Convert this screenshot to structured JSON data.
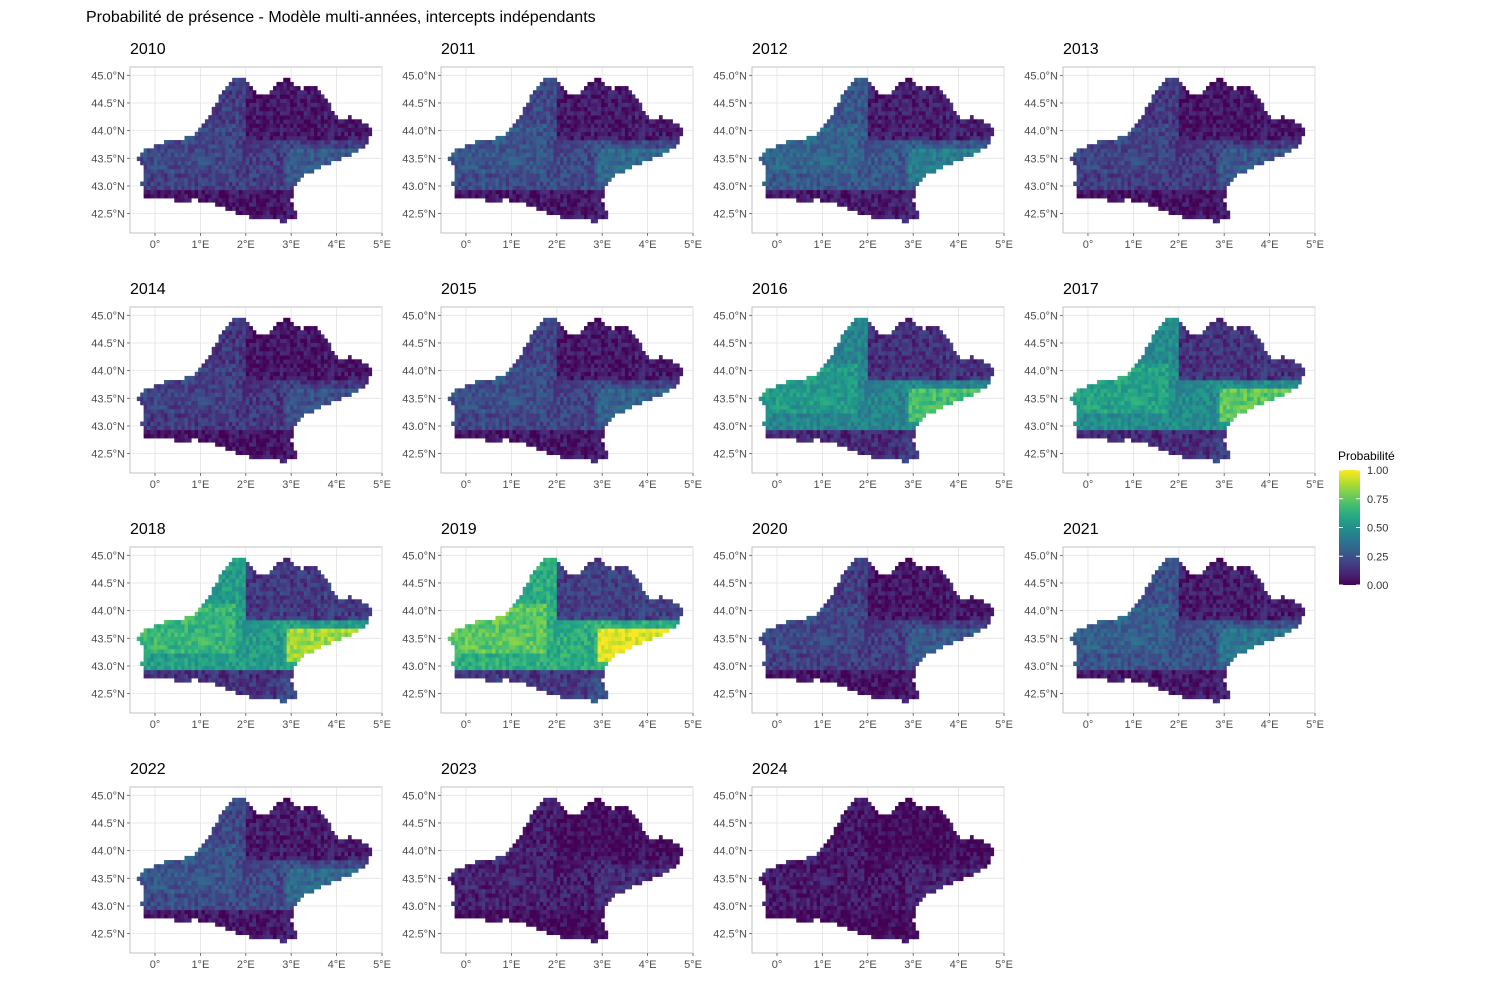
{
  "title": "Probabilité de présence - Modèle multi-années, intercepts indépendants",
  "chart_data": {
    "type": "heatmap",
    "title": "Probabilité de présence - Modèle multi-années, intercepts indépendants",
    "panels": [
      "2010",
      "2011",
      "2012",
      "2013",
      "2014",
      "2015",
      "2016",
      "2017",
      "2018",
      "2019",
      "2020",
      "2021",
      "2022",
      "2023",
      "2024"
    ],
    "panel_mean_probability": [
      0.18,
      0.22,
      0.27,
      0.17,
      0.16,
      0.2,
      0.45,
      0.48,
      0.55,
      0.62,
      0.18,
      0.25,
      0.22,
      0.08,
      0.06
    ],
    "x_ticks": [
      0,
      1,
      2,
      3,
      4,
      5
    ],
    "x_tick_labels": [
      "0°",
      "1°E",
      "2°E",
      "3°E",
      "4°E",
      "5°E"
    ],
    "y_ticks": [
      42.5,
      43.0,
      43.5,
      44.0,
      44.5,
      45.0
    ],
    "y_tick_labels": [
      "42.5°N",
      "43.0°N",
      "43.5°N",
      "44.0°N",
      "44.5°N",
      "45.0°N"
    ],
    "xlim": [
      -0.55,
      5.0
    ],
    "ylim": [
      42.15,
      45.15
    ],
    "grid": true,
    "legend": {
      "title": "Probabilité",
      "ticks": [
        1.0,
        0.75,
        0.5,
        0.25,
        0.0
      ],
      "tick_labels": [
        "1.00",
        "0.75",
        "0.50",
        "0.25",
        "0.00"
      ],
      "colormap": "viridis",
      "placement": "right",
      "colors": [
        "#440154",
        "#3b528b",
        "#21908c",
        "#5dc863",
        "#fde725"
      ]
    }
  }
}
